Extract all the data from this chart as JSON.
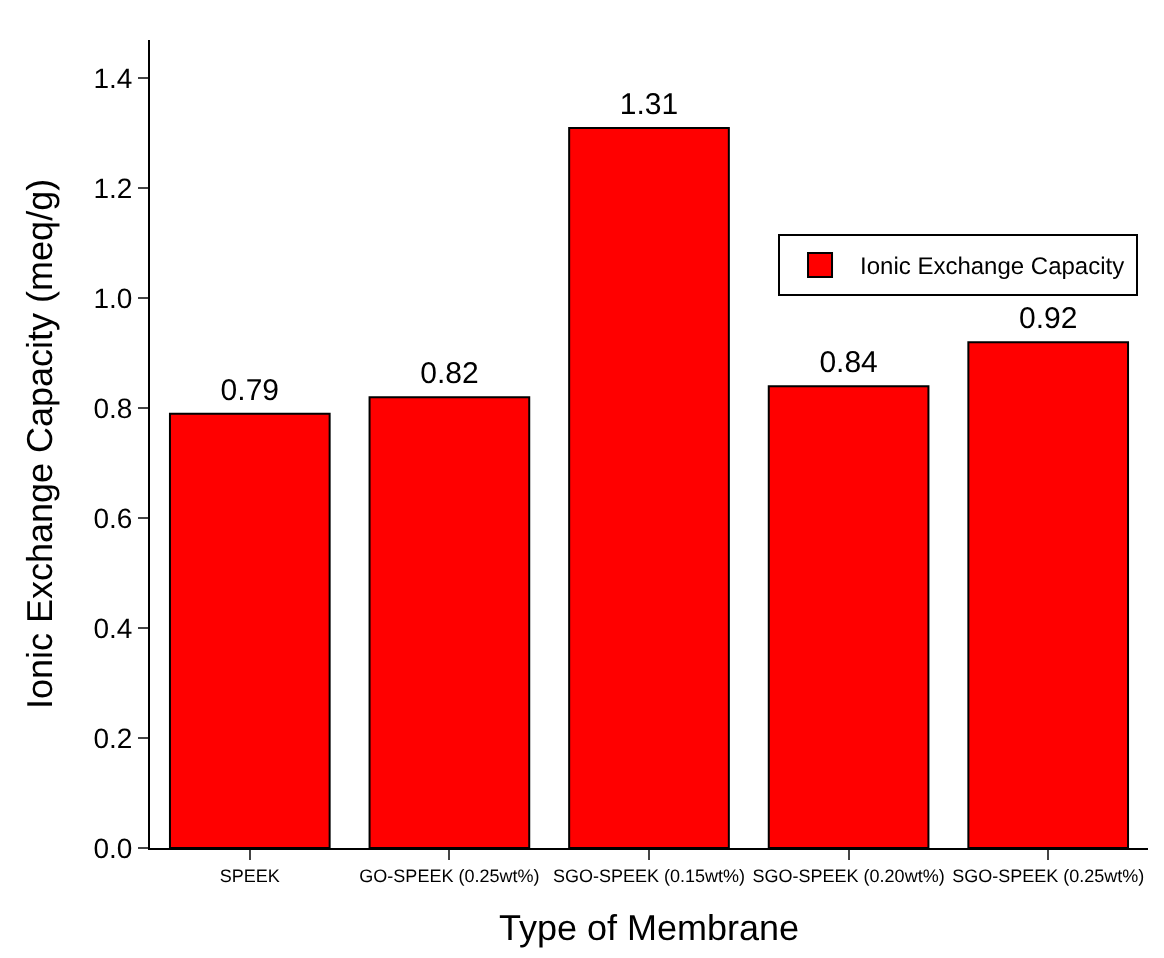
{
  "chart_data": {
    "type": "bar",
    "xlabel": "Type of Membrane",
    "ylabel": "Ionic Exchange Capacity (meq/g)",
    "categories": [
      "SPEEK",
      "GO-SPEEK (0.25wt%)",
      "SGO-SPEEK (0.15wt%)",
      "SGO-SPEEK (0.20wt%)",
      "SGO-SPEEK (0.25wt%)"
    ],
    "series": [
      {
        "name": "Ionic Exchange Capacity",
        "color": "#ff0000",
        "values": [
          0.79,
          0.82,
          1.31,
          0.84,
          0.92
        ]
      }
    ],
    "data_labels": true,
    "ylim": [
      0,
      1.47
    ],
    "yticks": [
      {
        "value": 0,
        "label": "0.0"
      },
      0.2,
      0.4,
      0.6,
      0.8,
      {
        "value": 1,
        "label": "1.0"
      },
      1.2,
      1.4
    ],
    "legend": "top right"
  }
}
